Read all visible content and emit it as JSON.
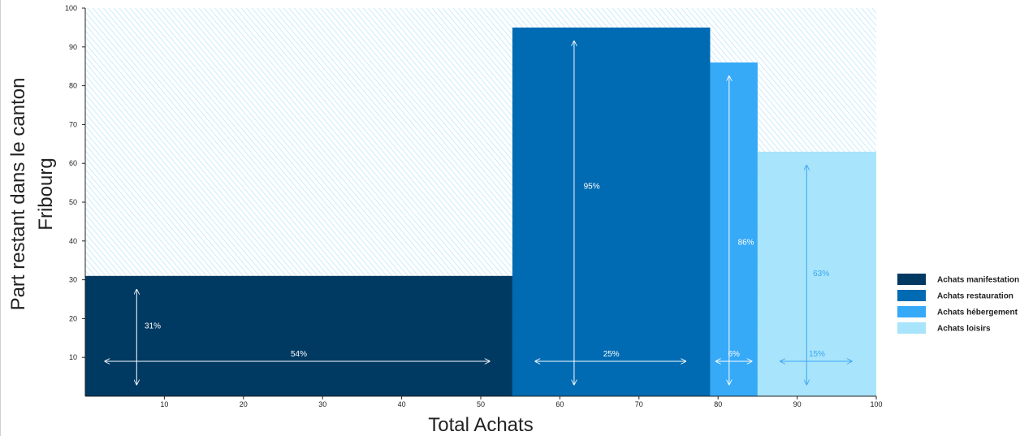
{
  "chart_data": {
    "type": "bar",
    "variant": "marimekko",
    "title": "",
    "xlabel": "Total Achats",
    "ylabel_lines": [
      "Part restant dans le canton",
      "Fribourg"
    ],
    "xlim": [
      0,
      100
    ],
    "ylim": [
      0,
      100
    ],
    "x_ticks": [
      10,
      20,
      30,
      40,
      50,
      60,
      70,
      80,
      90,
      100
    ],
    "y_ticks": [
      10,
      20,
      30,
      40,
      50,
      60,
      70,
      80,
      90,
      100
    ],
    "background_pattern": "diagonal-hatch",
    "legend_position": "right",
    "series": [
      {
        "name": "Achats manifestation",
        "color": "#003a63",
        "label_color": "#ffffff",
        "x_start": 0,
        "width": 54,
        "value": 31,
        "width_label": "54%",
        "value_label": "31%"
      },
      {
        "name": "Achats restauration",
        "color": "#006bb3",
        "label_color": "#ffffff",
        "x_start": 54,
        "width": 25,
        "value": 95,
        "width_label": "25%",
        "value_label": "95%"
      },
      {
        "name": "Achats hébergement",
        "color": "#36a9f7",
        "label_color": "#ffffff",
        "x_start": 79,
        "width": 6,
        "value": 86,
        "width_label": "6%",
        "value_label": "86%"
      },
      {
        "name": "Achats loisirs",
        "color": "#a8e4fb",
        "label_color": "#3aa6f0",
        "x_start": 85,
        "width": 15,
        "value": 63,
        "width_label": "15%",
        "value_label": "63%"
      }
    ]
  }
}
